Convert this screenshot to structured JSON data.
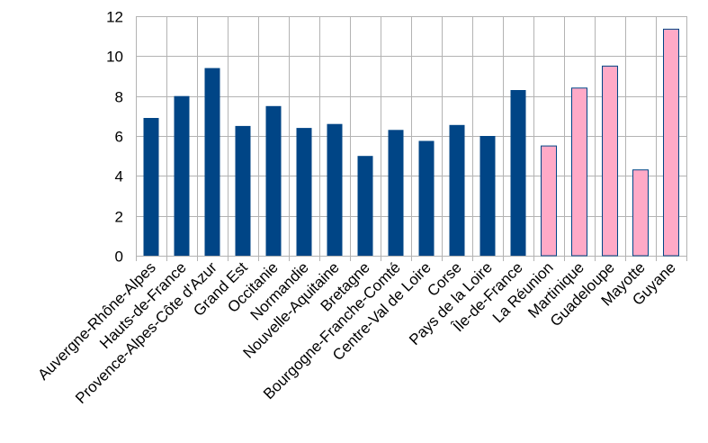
{
  "chart_data": {
    "type": "bar",
    "title": "",
    "xlabel": "",
    "ylabel": "",
    "ylim": [
      0,
      12
    ],
    "yticks": [
      0,
      2,
      4,
      6,
      8,
      10,
      12
    ],
    "grid": true,
    "legend": "none",
    "categories": [
      "Auvergne-Rhône-Alpes",
      "Hauts-de-France",
      "Provence-Alpes-Côte d'Azur",
      "Grand Est",
      "Occitanie",
      "Normandie",
      "Nouvelle-Aquitaine",
      "Bretagne",
      "Bourgogne-Franche-Comté",
      "Centre-Val de Loire",
      "Corse",
      "Pays de la Loire",
      "Île-de-France",
      "La Réunion",
      "Martinique",
      "Guadeloupe",
      "Mayotte",
      "Guyane"
    ],
    "values": [
      6.9,
      8.0,
      9.4,
      6.5,
      7.5,
      6.4,
      6.6,
      5.0,
      6.3,
      5.75,
      6.55,
      6.0,
      8.3,
      5.5,
      8.4,
      9.5,
      4.3,
      11.35
    ],
    "colors": {
      "metropolitan": "#004586",
      "overseas": "#ffaac7",
      "overseas_edge": "#004586"
    },
    "overseas_start_index": 13
  }
}
